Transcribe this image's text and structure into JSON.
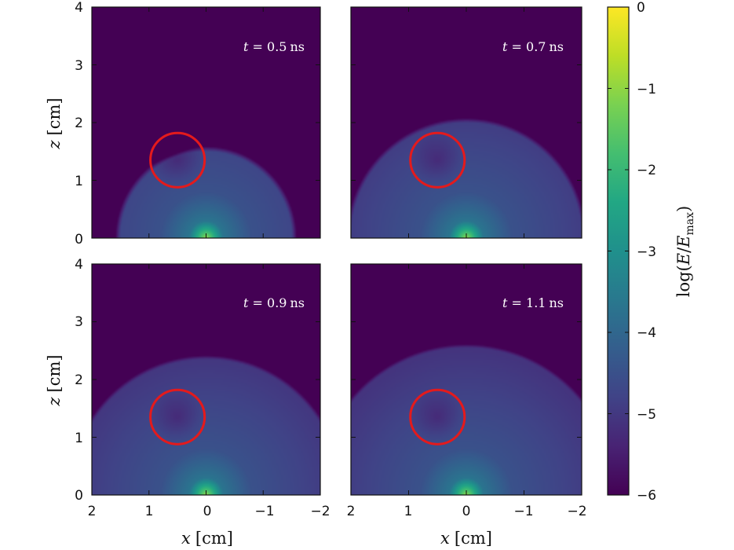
{
  "chart_data": {
    "type": "heatmap",
    "colormap": "viridis",
    "x_label": "x",
    "x_unit": "[cm]",
    "z_label": "z",
    "z_unit": "[cm]",
    "xlim": [
      2,
      -2
    ],
    "zlim": [
      0,
      4
    ],
    "x_ticks": [
      "2",
      "1",
      "0",
      "−1",
      "−2"
    ],
    "z_ticks": [
      "0",
      "1",
      "2",
      "3",
      "4"
    ],
    "colorbar": {
      "label": "log(E/E_max)",
      "label_main": "log(",
      "label_E": "E",
      "label_slash": "/",
      "label_Emax": "E",
      "label_sub": "max",
      "label_close": ")",
      "range": [
        -6,
        0
      ],
      "ticks": [
        "0",
        "−1",
        "−2",
        "−3",
        "−4",
        "−5",
        "−6"
      ]
    },
    "circle": {
      "center_x": 0.5,
      "center_z": 1.35,
      "radius": 0.47,
      "color": "#e41a1c"
    },
    "panels": [
      {
        "time_prefix": "t = ",
        "time": "0.5",
        "unit": "ns",
        "front_radius": 1.5,
        "source_x": 0.0
      },
      {
        "time_prefix": "t = ",
        "time": "0.7",
        "unit": "ns",
        "front_radius": 2.0,
        "source_x": 0.0
      },
      {
        "time_prefix": "t = ",
        "time": "0.9",
        "unit": "ns",
        "front_radius": 2.35,
        "source_x": 0.0
      },
      {
        "time_prefix": "t = ",
        "time": "1.1",
        "unit": "ns",
        "front_radius": 2.55,
        "source_x": 0.0
      }
    ]
  }
}
